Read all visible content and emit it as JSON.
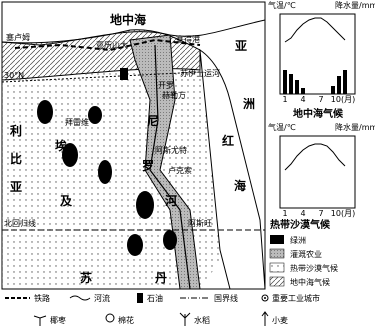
{
  "map": {
    "sea": "地中海",
    "asia": [
      "亚",
      "洲"
    ],
    "red_sea": [
      "红",
      "海"
    ],
    "libya": [
      "利",
      "比",
      "亚"
    ],
    "egypt": [
      "埃",
      "及"
    ],
    "nile": [
      "尼",
      "罗",
      "河"
    ],
    "sudan": [
      "苏",
      "丹"
    ],
    "lat_30": "30°N",
    "tropic": "北回归线",
    "cities": [
      "塞卢姆",
      "亚历山大",
      "塞得港",
      "苏伊士运河",
      "开罗",
      "赫勒万",
      "拜雷维",
      "阿斯尤特",
      "卢克索",
      "阿斯旺"
    ]
  },
  "charts": [
    {
      "title": "地中海气候",
      "temp_label": "气温/℃",
      "rain_label": "降水量/mm",
      "months": [
        "1",
        "4",
        "7",
        "10(月)"
      ]
    },
    {
      "title": "热带沙漠气候",
      "temp_label": "气温/℃",
      "rain_label": "降水量/mm",
      "months": [
        "1",
        "4",
        "7",
        "10(月)"
      ]
    }
  ],
  "legend": {
    "right": [
      "绿洲",
      "灌溉农业",
      "热带沙漠气候",
      "地中海气候"
    ],
    "bottom": [
      "铁路",
      "河流",
      "石油",
      "国界线",
      "重要工业城市",
      "椰枣",
      "棉花",
      "水稻",
      "小麦"
    ]
  }
}
